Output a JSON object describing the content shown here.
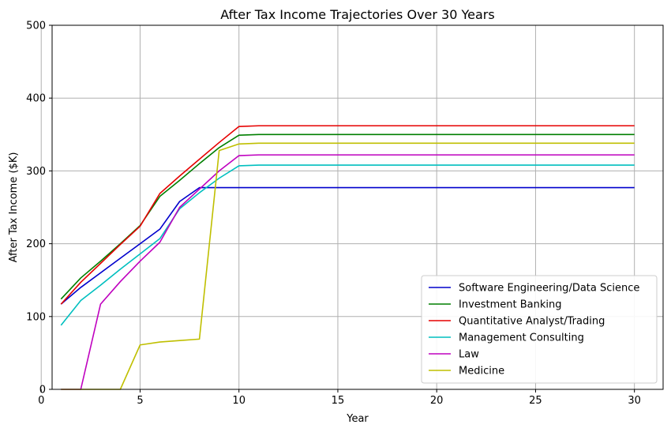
{
  "chart_data": {
    "type": "line",
    "title": "After Tax Income Trajectories Over 30 Years",
    "xlabel": "Year",
    "ylabel": "After Tax Income ($K)",
    "xlim": [
      0.55,
      31.45
    ],
    "ylim": [
      0,
      500
    ],
    "xticks": [
      0,
      5,
      10,
      15,
      20,
      25,
      30
    ],
    "yticks": [
      0,
      100,
      200,
      300,
      400,
      500
    ],
    "grid": true,
    "legend_position": "lower-right",
    "x": [
      1,
      2,
      3,
      4,
      5,
      6,
      7,
      8,
      9,
      10,
      11,
      12,
      13,
      14,
      15,
      16,
      17,
      18,
      19,
      20,
      21,
      22,
      23,
      24,
      25,
      26,
      27,
      28,
      29,
      30
    ],
    "series": [
      {
        "name": "Software Engineering/Data Science",
        "color": "#0000cc",
        "values": [
          117,
          140,
          160,
          180,
          200,
          220,
          258,
          277,
          277,
          277,
          277,
          277,
          277,
          277,
          277,
          277,
          277,
          277,
          277,
          277,
          277,
          277,
          277,
          277,
          277,
          277,
          277,
          277,
          277,
          277
        ]
      },
      {
        "name": "Investment Banking",
        "color": "#007f00",
        "values": [
          124,
          153,
          176,
          200,
          225,
          265,
          287,
          310,
          332,
          349,
          350,
          350,
          350,
          350,
          350,
          350,
          350,
          350,
          350,
          350,
          350,
          350,
          350,
          350,
          350,
          350,
          350,
          350,
          350,
          350
        ]
      },
      {
        "name": "Quantitative Analyst/Trading",
        "color": "#e60000",
        "values": [
          117,
          147,
          173,
          199,
          224,
          269,
          293,
          316,
          339,
          361,
          362,
          362,
          362,
          362,
          362,
          362,
          362,
          362,
          362,
          362,
          362,
          362,
          362,
          362,
          362,
          362,
          362,
          362,
          362,
          362
        ]
      },
      {
        "name": "Management Consulting",
        "color": "#00bfbf",
        "values": [
          88,
          122,
          143,
          165,
          186,
          207,
          248,
          270,
          290,
          307,
          308,
          308,
          308,
          308,
          308,
          308,
          308,
          308,
          308,
          308,
          308,
          308,
          308,
          308,
          308,
          308,
          308,
          308,
          308,
          308
        ]
      },
      {
        "name": "Law",
        "color": "#bf00bf",
        "values": [
          0,
          0,
          117,
          148,
          176,
          202,
          250,
          275,
          300,
          321,
          322,
          322,
          322,
          322,
          322,
          322,
          322,
          322,
          322,
          322,
          322,
          322,
          322,
          322,
          322,
          322,
          322,
          322,
          322,
          322
        ]
      },
      {
        "name": "Medicine",
        "color": "#bfbf00",
        "values": [
          0,
          0,
          0,
          0,
          61,
          65,
          67,
          69,
          328,
          337,
          338,
          338,
          338,
          338,
          338,
          338,
          338,
          338,
          338,
          338,
          338,
          338,
          338,
          338,
          338,
          338,
          338,
          338,
          338,
          338
        ]
      }
    ]
  }
}
